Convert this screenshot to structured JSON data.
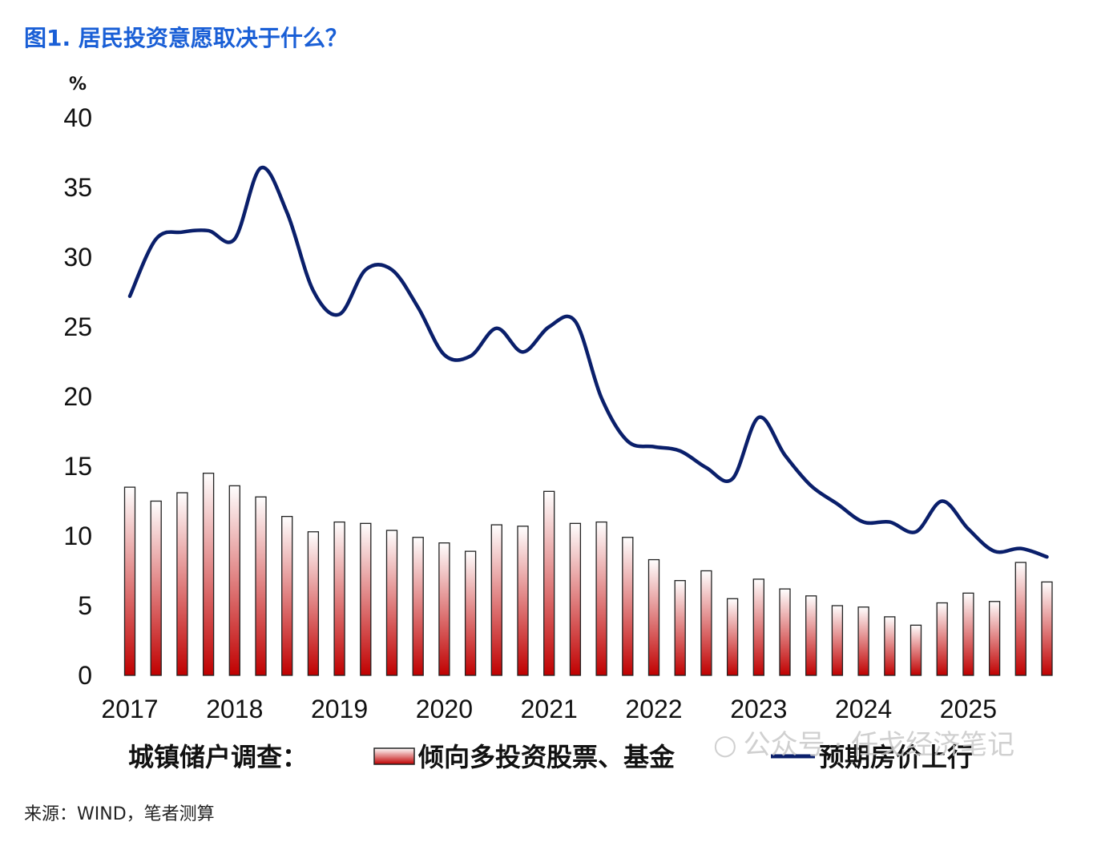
{
  "title": "图1. 居民投资意愿取决于什么？",
  "source": "来源：WIND，笔者测算",
  "watermark": {
    "icon": "wechat-icon",
    "text": "公众号 · 任戈经济笔记"
  },
  "colors": {
    "title": "#1a5fd6",
    "line": "#0a1f6b",
    "bar_top": "#ffffff",
    "bar_bottom": "#c00000"
  },
  "chart_data": {
    "type": "bar",
    "unit_label": "%",
    "ylim": [
      0,
      40
    ],
    "y_ticks": [
      0,
      5,
      10,
      15,
      20,
      25,
      30,
      35,
      40
    ],
    "x_tick_labels": [
      "2017",
      "2018",
      "2019",
      "2020",
      "2021",
      "2022",
      "2023",
      "2024",
      "2025"
    ],
    "legend_prefix": "城镇储户调查：",
    "legend_position": "bottom",
    "grid": false,
    "quarters": [
      "2017Q1",
      "2017Q2",
      "2017Q3",
      "2017Q4",
      "2018Q1",
      "2018Q2",
      "2018Q3",
      "2018Q4",
      "2019Q1",
      "2019Q2",
      "2019Q3",
      "2019Q4",
      "2020Q1",
      "2020Q2",
      "2020Q3",
      "2020Q4",
      "2021Q1",
      "2021Q2",
      "2021Q3",
      "2021Q4",
      "2022Q1",
      "2022Q2",
      "2022Q3",
      "2022Q4",
      "2023Q1",
      "2023Q2",
      "2023Q3",
      "2023Q4",
      "2024Q1",
      "2024Q2",
      "2024Q3",
      "2024Q4",
      "2025Q1",
      "2025Q2",
      "2025Q3",
      "2025Q4"
    ],
    "series": [
      {
        "name": "倾向多投资股票、基金",
        "type": "bar",
        "values": [
          13.5,
          12.5,
          13.1,
          14.5,
          13.6,
          12.8,
          11.4,
          10.3,
          11.0,
          10.9,
          10.4,
          9.9,
          9.5,
          8.9,
          10.8,
          10.7,
          13.2,
          10.9,
          11.0,
          9.9,
          8.3,
          6.8,
          7.5,
          5.5,
          6.9,
          6.2,
          5.7,
          5.0,
          4.9,
          4.2,
          3.6,
          5.2,
          5.9,
          5.3,
          8.1,
          6.7
        ]
      },
      {
        "name": "预期房价上行",
        "type": "line",
        "values": [
          27.2,
          31.3,
          31.8,
          31.9,
          31.3,
          36.4,
          33.2,
          27.6,
          25.9,
          29.1,
          29.1,
          26.4,
          23.0,
          22.9,
          24.9,
          23.2,
          25.0,
          25.4,
          19.9,
          16.8,
          16.4,
          16.1,
          14.9,
          14.1,
          18.5,
          15.8,
          13.6,
          12.3,
          11.0,
          11.0,
          10.3,
          12.5,
          10.5,
          8.9,
          9.1,
          8.5
        ]
      }
    ]
  }
}
